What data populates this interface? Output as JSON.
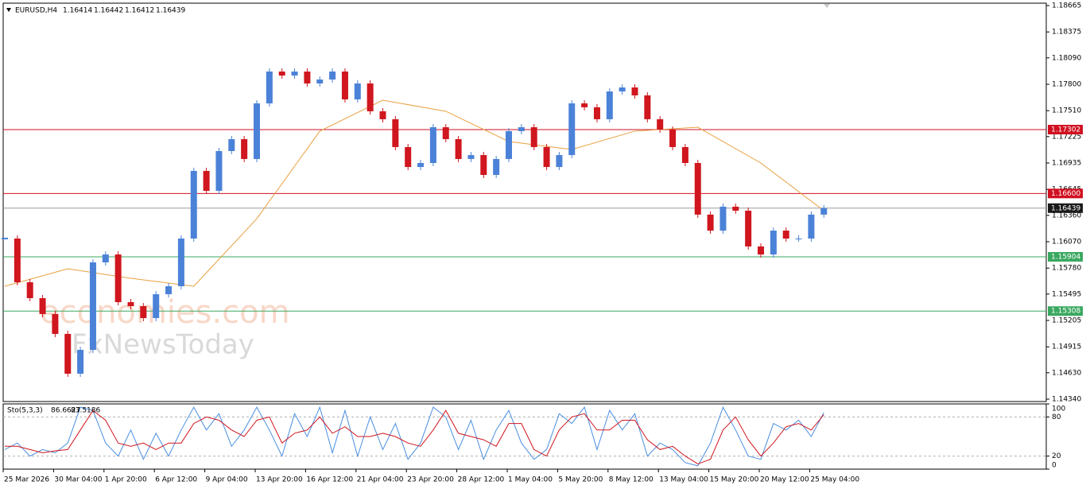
{
  "chart_data": [
    {
      "type": "candlestick",
      "symbol": "EURUSD,H4",
      "ohlc": [
        1.16414,
        1.16442,
        1.16412,
        1.16439
      ],
      "up_color": "#4b82d8",
      "down_color": "#d0161e",
      "close": [
        1.16105,
        1.15625,
        1.1545,
        1.15275,
        1.15057,
        1.1462,
        1.14882,
        1.15843,
        1.1593,
        1.15406,
        1.15362,
        1.15231,
        1.15493,
        1.15581,
        1.16105,
        1.16848,
        1.16629,
        1.17066,
        1.17197,
        1.16979,
        1.1759,
        1.1794,
        1.17896,
        1.1794,
        1.17809,
        1.17852,
        1.1794,
        1.17634,
        1.17809,
        1.17503,
        1.17416,
        1.1711,
        1.16891,
        1.16935,
        1.17328,
        1.17197,
        1.16979,
        1.17022,
        1.16804,
        1.16979,
        1.17285,
        1.17328,
        1.1711,
        1.16891,
        1.17022,
        1.1759,
        1.17547,
        1.17416,
        1.17721,
        1.17765,
        1.17678,
        1.17416,
        1.17302,
        1.1711,
        1.16935,
        1.16368,
        1.16192,
        1.16455,
        1.16411,
        1.16018,
        1.1593,
        1.16192,
        1.16105,
        1.16105,
        1.16368,
        1.16439
      ],
      "ma": {
        "color": "#e8a040",
        "x": [
          0,
          5,
          10,
          15,
          20,
          25,
          30,
          35,
          40,
          45,
          50,
          55,
          60,
          65
        ],
        "values": [
          1.15581,
          1.15773,
          1.15668,
          1.15581,
          1.16323,
          1.17285,
          1.17625,
          1.17503,
          1.17171,
          1.17084,
          1.17285,
          1.17328,
          1.16935,
          1.16411
        ]
      },
      "levels": [
        {
          "value": 1.17302,
          "label": "1.17302",
          "color": "#d01020"
        },
        {
          "value": 1.166,
          "label": "1.16600",
          "color": "#d01020"
        },
        {
          "value": 1.16439,
          "label": "1.16439",
          "color": "#9a9a9a"
        },
        {
          "value": 1.15904,
          "label": "1.15904",
          "color": "#3aa860"
        },
        {
          "value": 1.15308,
          "label": "1.15308",
          "color": "#3aa860"
        }
      ],
      "ylim": [
        1.14314,
        1.18691
      ],
      "yticks": [
        {
          "value": 1.18665,
          "label": "1.18665"
        },
        {
          "value": 1.18375,
          "label": "1.18375"
        },
        {
          "value": 1.1809,
          "label": "1.18090"
        },
        {
          "value": 1.178,
          "label": "1.17800"
        },
        {
          "value": 1.1751,
          "label": "1.17510"
        },
        {
          "value": 1.17225,
          "label": "1.17225"
        },
        {
          "value": 1.16935,
          "label": "1.16935"
        },
        {
          "value": 1.16645,
          "label": "1.16645"
        },
        {
          "value": 1.1636,
          "label": "1.16360"
        },
        {
          "value": 1.1607,
          "label": "1.16070"
        },
        {
          "value": 1.1578,
          "label": "1.15780"
        },
        {
          "value": 1.15495,
          "label": "1.15495"
        },
        {
          "value": 1.15205,
          "label": "1.15205"
        },
        {
          "value": 1.14915,
          "label": "1.14915"
        },
        {
          "value": 1.1463,
          "label": "1.14630"
        },
        {
          "value": 1.1434,
          "label": "1.14340"
        }
      ],
      "xticks": [
        {
          "value": 0,
          "label": "25 Mar 2026"
        },
        {
          "value": 4,
          "label": "30 Mar 04:00"
        },
        {
          "value": 8,
          "label": "1 Apr 20:00"
        },
        {
          "value": 12,
          "label": "6 Apr 12:00"
        },
        {
          "value": 16,
          "label": "9 Apr 04:00"
        },
        {
          "value": 20,
          "label": "13 Apr 20:00"
        },
        {
          "value": 24,
          "label": "16 Apr 12:00"
        },
        {
          "value": 28,
          "label": "21 Apr 04:00"
        },
        {
          "value": 32,
          "label": "23 Apr 20:00"
        },
        {
          "value": 36,
          "label": "28 Apr 12:00"
        },
        {
          "value": 40,
          "label": "1 May 04:00"
        },
        {
          "value": 44,
          "label": "5 May 20:00"
        },
        {
          "value": 48,
          "label": "8 May 12:00"
        },
        {
          "value": 52,
          "label": "13 May 04:00"
        },
        {
          "value": 56,
          "label": "15 May 20:00"
        },
        {
          "value": 60,
          "label": "20 May 12:00"
        },
        {
          "value": 64,
          "label": "25 May 04:00"
        }
      ],
      "watermarks": [
        "economies.com",
        "FxNewsToday"
      ]
    },
    {
      "type": "line",
      "name": "Sto(5,3,3)",
      "series": [
        {
          "color": "#4a8fe0",
          "values": [
            30,
            40,
            20,
            30,
            25,
            40,
            95,
            90,
            40,
            20,
            60,
            15,
            55,
            20,
            60,
            95,
            60,
            85,
            35,
            60,
            95,
            60,
            20,
            85,
            50,
            95,
            25,
            90,
            20,
            80,
            30,
            70,
            15,
            40,
            95,
            80,
            30,
            75,
            15,
            60,
            90,
            40,
            15,
            30,
            85,
            70,
            95,
            30,
            90,
            60,
            85,
            20,
            40,
            30,
            10,
            5,
            40,
            95,
            60,
            20,
            15,
            70,
            60,
            75,
            50,
            86.6627
          ]
        },
        {
          "color": "#d0161e",
          "values": [
            35,
            35,
            30,
            25,
            28,
            30,
            60,
            90,
            75,
            40,
            35,
            40,
            30,
            40,
            40,
            70,
            80,
            75,
            60,
            50,
            75,
            80,
            40,
            55,
            60,
            80,
            55,
            65,
            50,
            50,
            55,
            50,
            40,
            35,
            60,
            90,
            55,
            50,
            45,
            35,
            70,
            70,
            30,
            20,
            60,
            80,
            85,
            60,
            60,
            75,
            75,
            45,
            30,
            35,
            20,
            8,
            15,
            60,
            80,
            45,
            20,
            40,
            65,
            70,
            60,
            83.5186
          ]
        }
      ],
      "ylim": [
        0,
        100
      ],
      "yticks": [
        0,
        20,
        80,
        100
      ]
    }
  ]
}
